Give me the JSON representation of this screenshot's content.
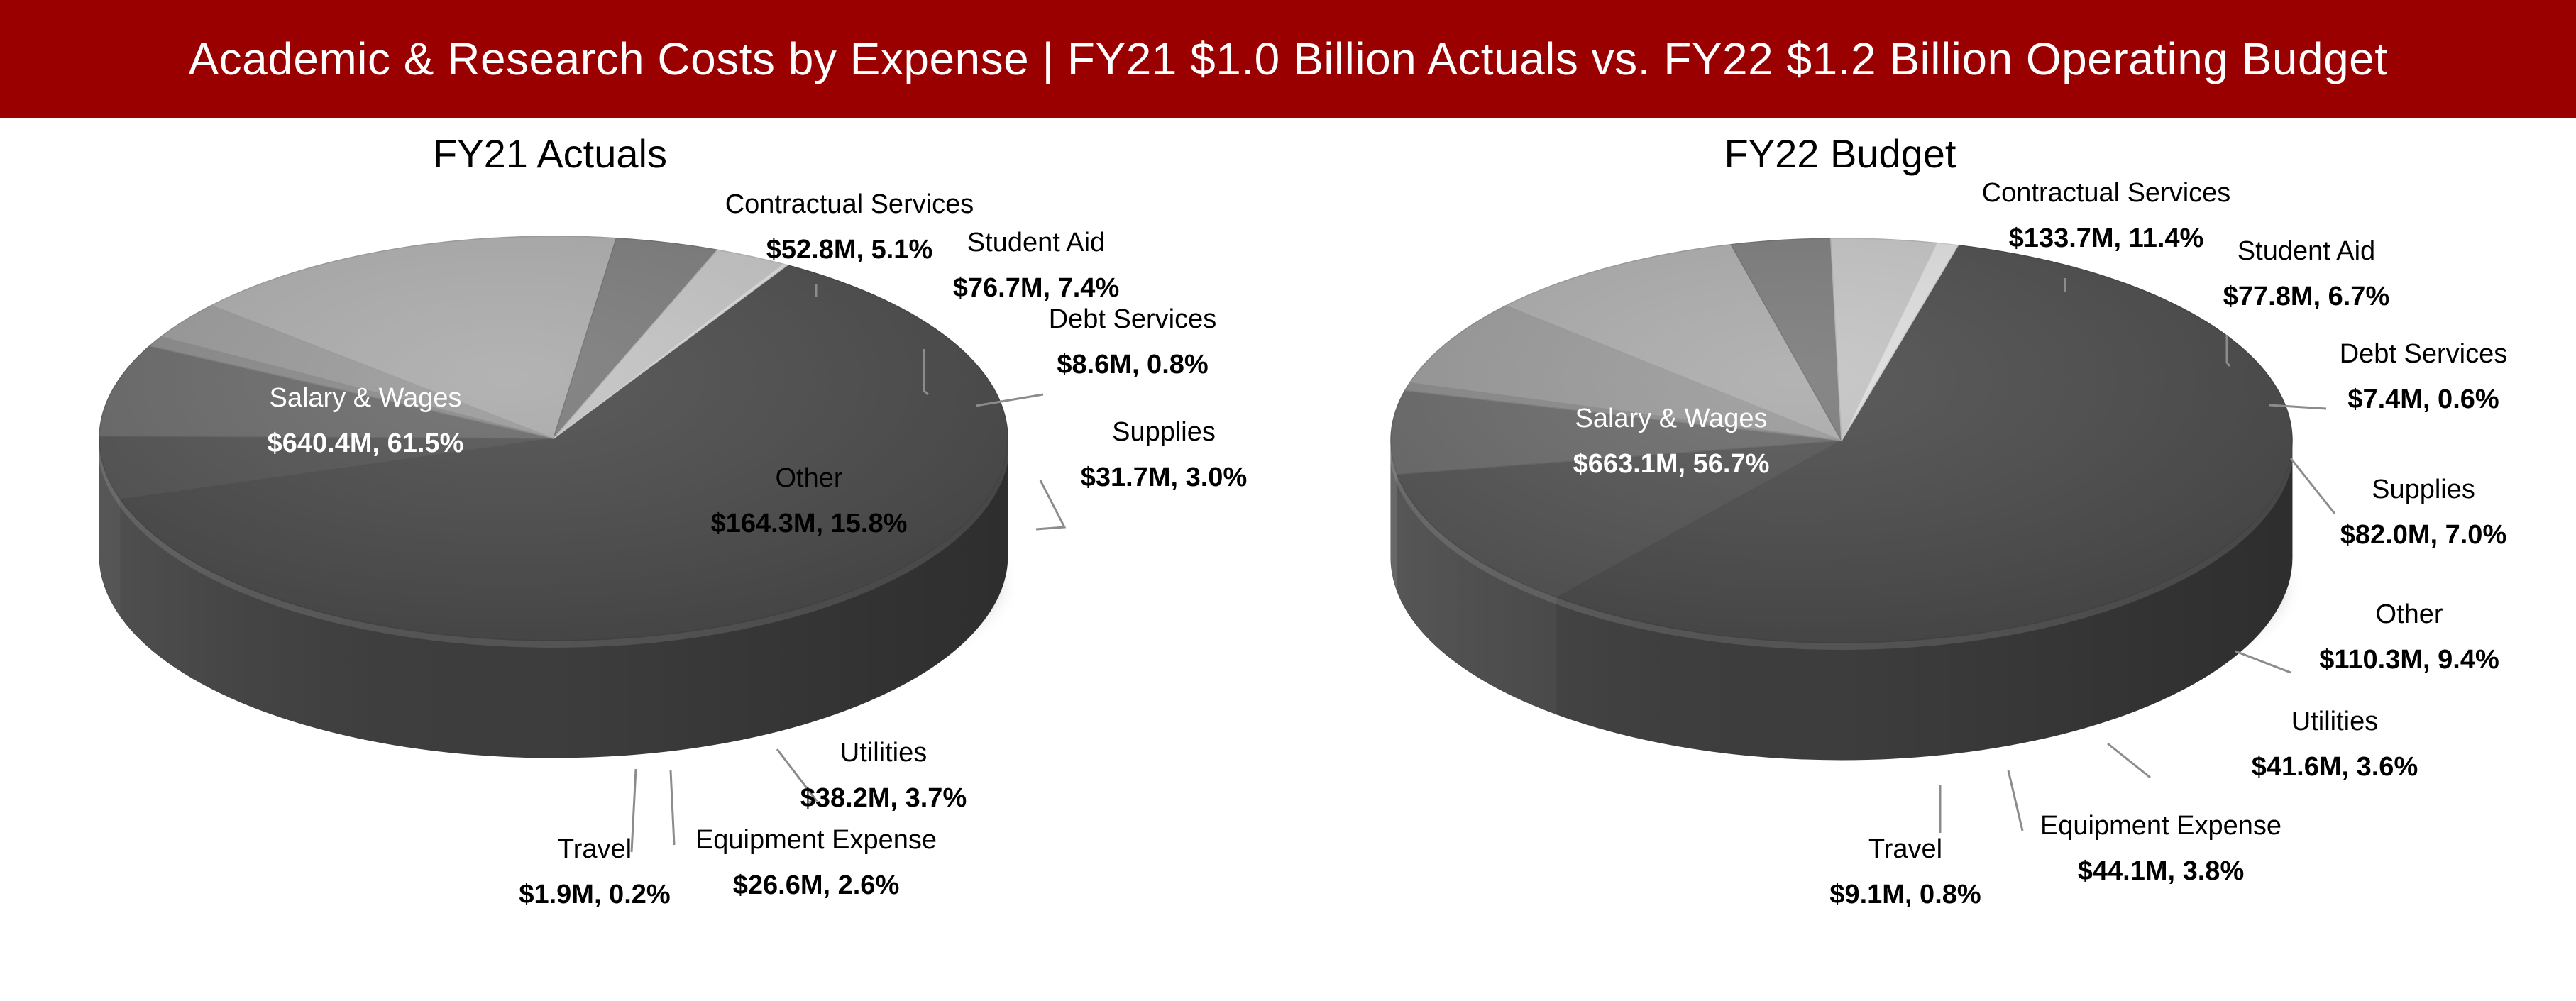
{
  "header": {
    "title": "Academic & Research Costs by Expense | FY21 $1.0 Billion Actuals vs. FY22 $1.2 Billion Operating Budget"
  },
  "colors": {
    "banner": "#9b0000",
    "banner_text": "#ffffff",
    "slices": [
      "#4a4a4a",
      "#535353",
      "#6a6a6a",
      "#8a8a8a",
      "#9a9a9a",
      "#ababab",
      "#7a7a7a",
      "#c3c3c3",
      "#dedede"
    ]
  },
  "chart_data": [
    {
      "type": "pie",
      "title": "FY21 Actuals",
      "categories": [
        "Salary & Wages",
        "Contractual Services",
        "Student Aid",
        "Debt Services",
        "Supplies",
        "Other",
        "Utilities",
        "Equipment Expense",
        "Travel"
      ],
      "values": [
        640.4,
        52.8,
        76.7,
        8.6,
        31.7,
        164.3,
        38.2,
        26.6,
        1.9
      ],
      "percents": [
        61.5,
        5.1,
        7.4,
        0.8,
        3.0,
        15.8,
        3.7,
        2.6,
        0.2
      ],
      "labels": [
        {
          "name": "Salary & Wages",
          "value": "$640.4M, 61.5%"
        },
        {
          "name": "Contractual Services",
          "value": "$52.8M, 5.1%"
        },
        {
          "name": "Student Aid",
          "value": "$76.7M, 7.4%"
        },
        {
          "name": "Debt Services",
          "value": "$8.6M, 0.8%"
        },
        {
          "name": "Supplies",
          "value": "$31.7M, 3.0%"
        },
        {
          "name": "Other",
          "value": "$164.3M, 15.8%"
        },
        {
          "name": "Utilities",
          "value": "$38.2M, 3.7%"
        },
        {
          "name": "Equipment Expense",
          "value": "$26.6M, 2.6%"
        },
        {
          "name": "Travel",
          "value": "$1.9M, 0.2%"
        }
      ],
      "unit": "$M",
      "style": "3d-pie"
    },
    {
      "type": "pie",
      "title": "FY22 Budget",
      "categories": [
        "Salary & Wages",
        "Contractual Services",
        "Student Aid",
        "Debt Services",
        "Supplies",
        "Other",
        "Utilities",
        "Equipment Expense",
        "Travel"
      ],
      "values": [
        663.1,
        133.7,
        77.8,
        7.4,
        82.0,
        110.3,
        41.6,
        44.1,
        9.1
      ],
      "percents": [
        56.7,
        11.4,
        6.7,
        0.6,
        7.0,
        9.4,
        3.6,
        3.8,
        0.8
      ],
      "labels": [
        {
          "name": "Salary & Wages",
          "value": "$663.1M, 56.7%"
        },
        {
          "name": "Contractual Services",
          "value": "$133.7M, 11.4%"
        },
        {
          "name": "Student Aid",
          "value": "$77.8M, 6.7%"
        },
        {
          "name": "Debt Services",
          "value": "$7.4M, 0.6%"
        },
        {
          "name": "Supplies",
          "value": "$82.0M, 7.0%"
        },
        {
          "name": "Other",
          "value": "$110.3M, 9.4%"
        },
        {
          "name": "Utilities",
          "value": "$41.6M, 3.6%"
        },
        {
          "name": "Equipment Expense",
          "value": "$44.1M, 3.8%"
        },
        {
          "name": "Travel",
          "value": "$9.1M, 0.8%"
        }
      ],
      "unit": "$M",
      "style": "3d-pie"
    }
  ]
}
